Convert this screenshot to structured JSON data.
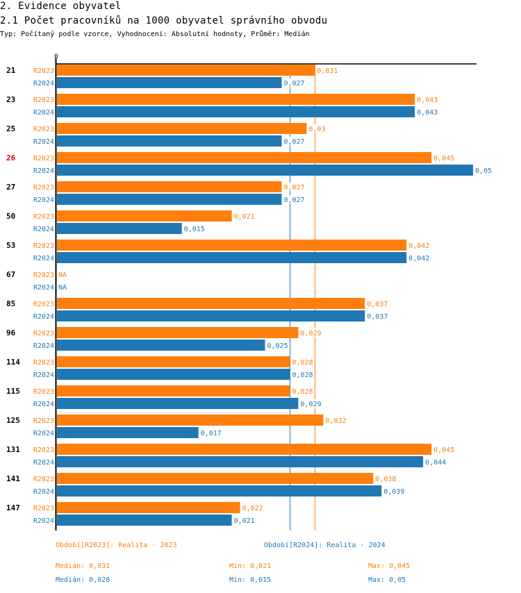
{
  "header": {
    "section_title": "2. Evidence obyvatel",
    "chart_title": "2.1 Počet pracovníků na 1000 obyvatel správního obvodu",
    "subtitle": "Typ: Počítaný podle vzorce, Vyhodnocení: Absolutní hodnoty, Průměr: Medián"
  },
  "colors": {
    "series_2023": "#ff7f0e",
    "series_2024": "#1f77b4",
    "highlight_category": "#e00000",
    "axis": "#000000"
  },
  "chart_data": {
    "type": "bar",
    "orientation": "horizontal",
    "title": "2.1 Počet pracovníků na 1000 obyvatel správního obvodu",
    "x_tick_labels": [
      "0"
    ],
    "xlim": [
      0,
      0.05
    ],
    "categories": [
      "21",
      "23",
      "25",
      "26",
      "27",
      "50",
      "53",
      "67",
      "85",
      "96",
      "114",
      "115",
      "125",
      "131",
      "141",
      "147"
    ],
    "highlighted_category": "26",
    "series": [
      {
        "name": "R2023",
        "legend": "Období[R2023]: Realita - 2023",
        "values": [
          0.031,
          0.043,
          0.03,
          0.045,
          0.027,
          0.021,
          0.042,
          null,
          0.037,
          0.029,
          0.028,
          0.028,
          0.032,
          0.045,
          0.038,
          0.022
        ],
        "labels": [
          "0,031",
          "0,043",
          "0,03",
          "0,045",
          "0,027",
          "0,021",
          "0,042",
          "NA",
          "0,037",
          "0,029",
          "0,028",
          "0,028",
          "0,032",
          "0,045",
          "0,038",
          "0,022"
        ],
        "median": 0.031,
        "median_label": "Medián: 0,031",
        "min": 0.021,
        "min_label": "Min: 0,021",
        "max": 0.045,
        "max_label": "Max: 0,045"
      },
      {
        "name": "R2024",
        "legend": "Období[R2024]: Realita - 2024",
        "values": [
          0.027,
          0.043,
          0.027,
          0.05,
          0.027,
          0.015,
          0.042,
          null,
          0.037,
          0.025,
          0.028,
          0.029,
          0.017,
          0.044,
          0.039,
          0.021
        ],
        "labels": [
          "0,027",
          "0,043",
          "0,027",
          "0,05",
          "0,027",
          "0,015",
          "0,042",
          "NA",
          "0,037",
          "0,025",
          "0,028",
          "0,029",
          "0,017",
          "0,044",
          "0,039",
          "0,021"
        ],
        "median": 0.028,
        "median_label": "Medián: 0,028",
        "min": 0.015,
        "min_label": "Min: 0,015",
        "max": 0.05,
        "max_label": "Max: 0,05"
      }
    ],
    "median_lines": true,
    "legend_position": "bottom"
  }
}
